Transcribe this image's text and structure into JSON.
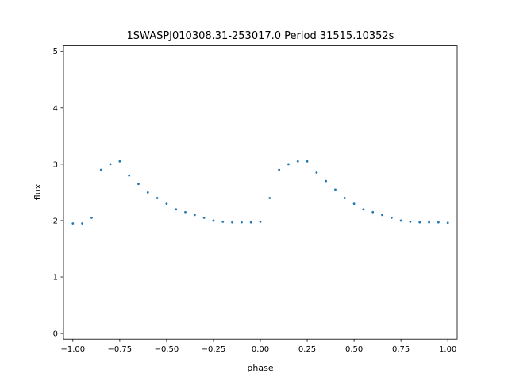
{
  "chart_data": {
    "type": "scatter",
    "title": "1SWASPJ010308.31-253017.0 Period 31515.10352s",
    "xlabel": "phase",
    "ylabel": "flux",
    "xlim": [
      -1.05,
      1.05
    ],
    "ylim": [
      -0.1,
      5.1
    ],
    "xticks": [
      -1.0,
      -0.75,
      -0.5,
      -0.25,
      0.0,
      0.25,
      0.5,
      0.75,
      1.0
    ],
    "xtick_labels": [
      "−1.00",
      "−0.75",
      "−0.50",
      "−0.25",
      "0.00",
      "0.25",
      "0.50",
      "0.75",
      "1.00"
    ],
    "yticks": [
      0,
      1,
      2,
      3,
      4,
      5
    ],
    "ytick_labels": [
      "0",
      "1",
      "2",
      "3",
      "4",
      "5"
    ],
    "grid": false,
    "point_color": "#1f77b4",
    "series": [
      {
        "x": [
          -1.0,
          -0.95,
          -0.9,
          -0.85,
          -0.8,
          -0.75,
          -0.7,
          -0.65,
          -0.6,
          -0.55,
          -0.5,
          -0.45,
          -0.4,
          -0.35,
          -0.3,
          -0.25,
          -0.2,
          -0.15,
          -0.1,
          -0.05,
          0.0,
          0.05,
          0.1,
          0.15,
          0.2,
          0.25,
          0.3,
          0.35,
          0.4,
          0.45,
          0.5,
          0.55,
          0.6,
          0.65,
          0.7,
          0.75,
          0.8,
          0.85,
          0.9,
          0.95,
          1.0
        ],
        "y": [
          1.95,
          1.95,
          2.05,
          2.9,
          3.0,
          3.05,
          2.8,
          2.65,
          2.5,
          2.4,
          2.3,
          2.2,
          2.15,
          2.1,
          2.05,
          2.0,
          1.98,
          1.97,
          1.97,
          1.97,
          1.98,
          2.4,
          2.9,
          3.0,
          3.05,
          3.05,
          2.85,
          2.7,
          2.55,
          2.4,
          2.3,
          2.2,
          2.15,
          2.1,
          2.05,
          2.0,
          1.98,
          1.97,
          1.97,
          1.97,
          1.96
        ]
      }
    ]
  }
}
